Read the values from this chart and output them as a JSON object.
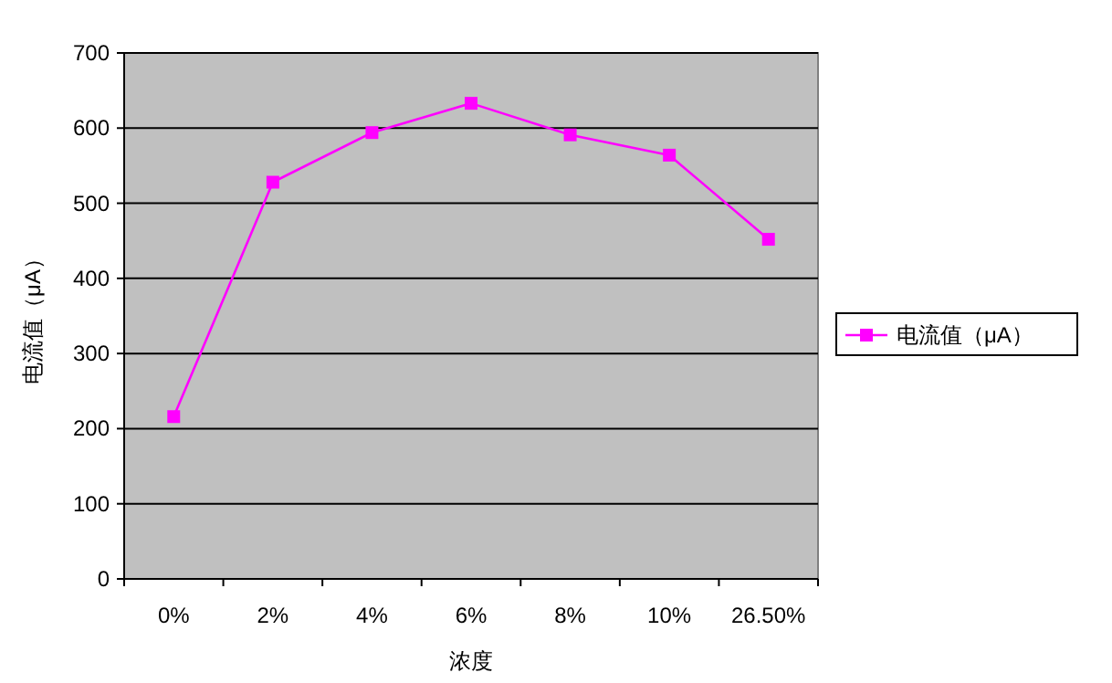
{
  "chart_data": {
    "type": "line",
    "xlabel": "浓度",
    "ylabel": "电流值（μA）",
    "categories": [
      "0%",
      "2%",
      "4%",
      "6%",
      "8%",
      "10%",
      "26.50%"
    ],
    "series": [
      {
        "name": "电流值（μA）",
        "color": "#ff00ff",
        "values": [
          216,
          528,
          594,
          633,
          591,
          564,
          452
        ]
      }
    ],
    "ylim": [
      0,
      700
    ],
    "yticks": [
      0,
      100,
      200,
      300,
      400,
      500,
      600,
      700
    ],
    "grid": "y",
    "legend": "right",
    "marker": "square",
    "line_style": "solid"
  }
}
